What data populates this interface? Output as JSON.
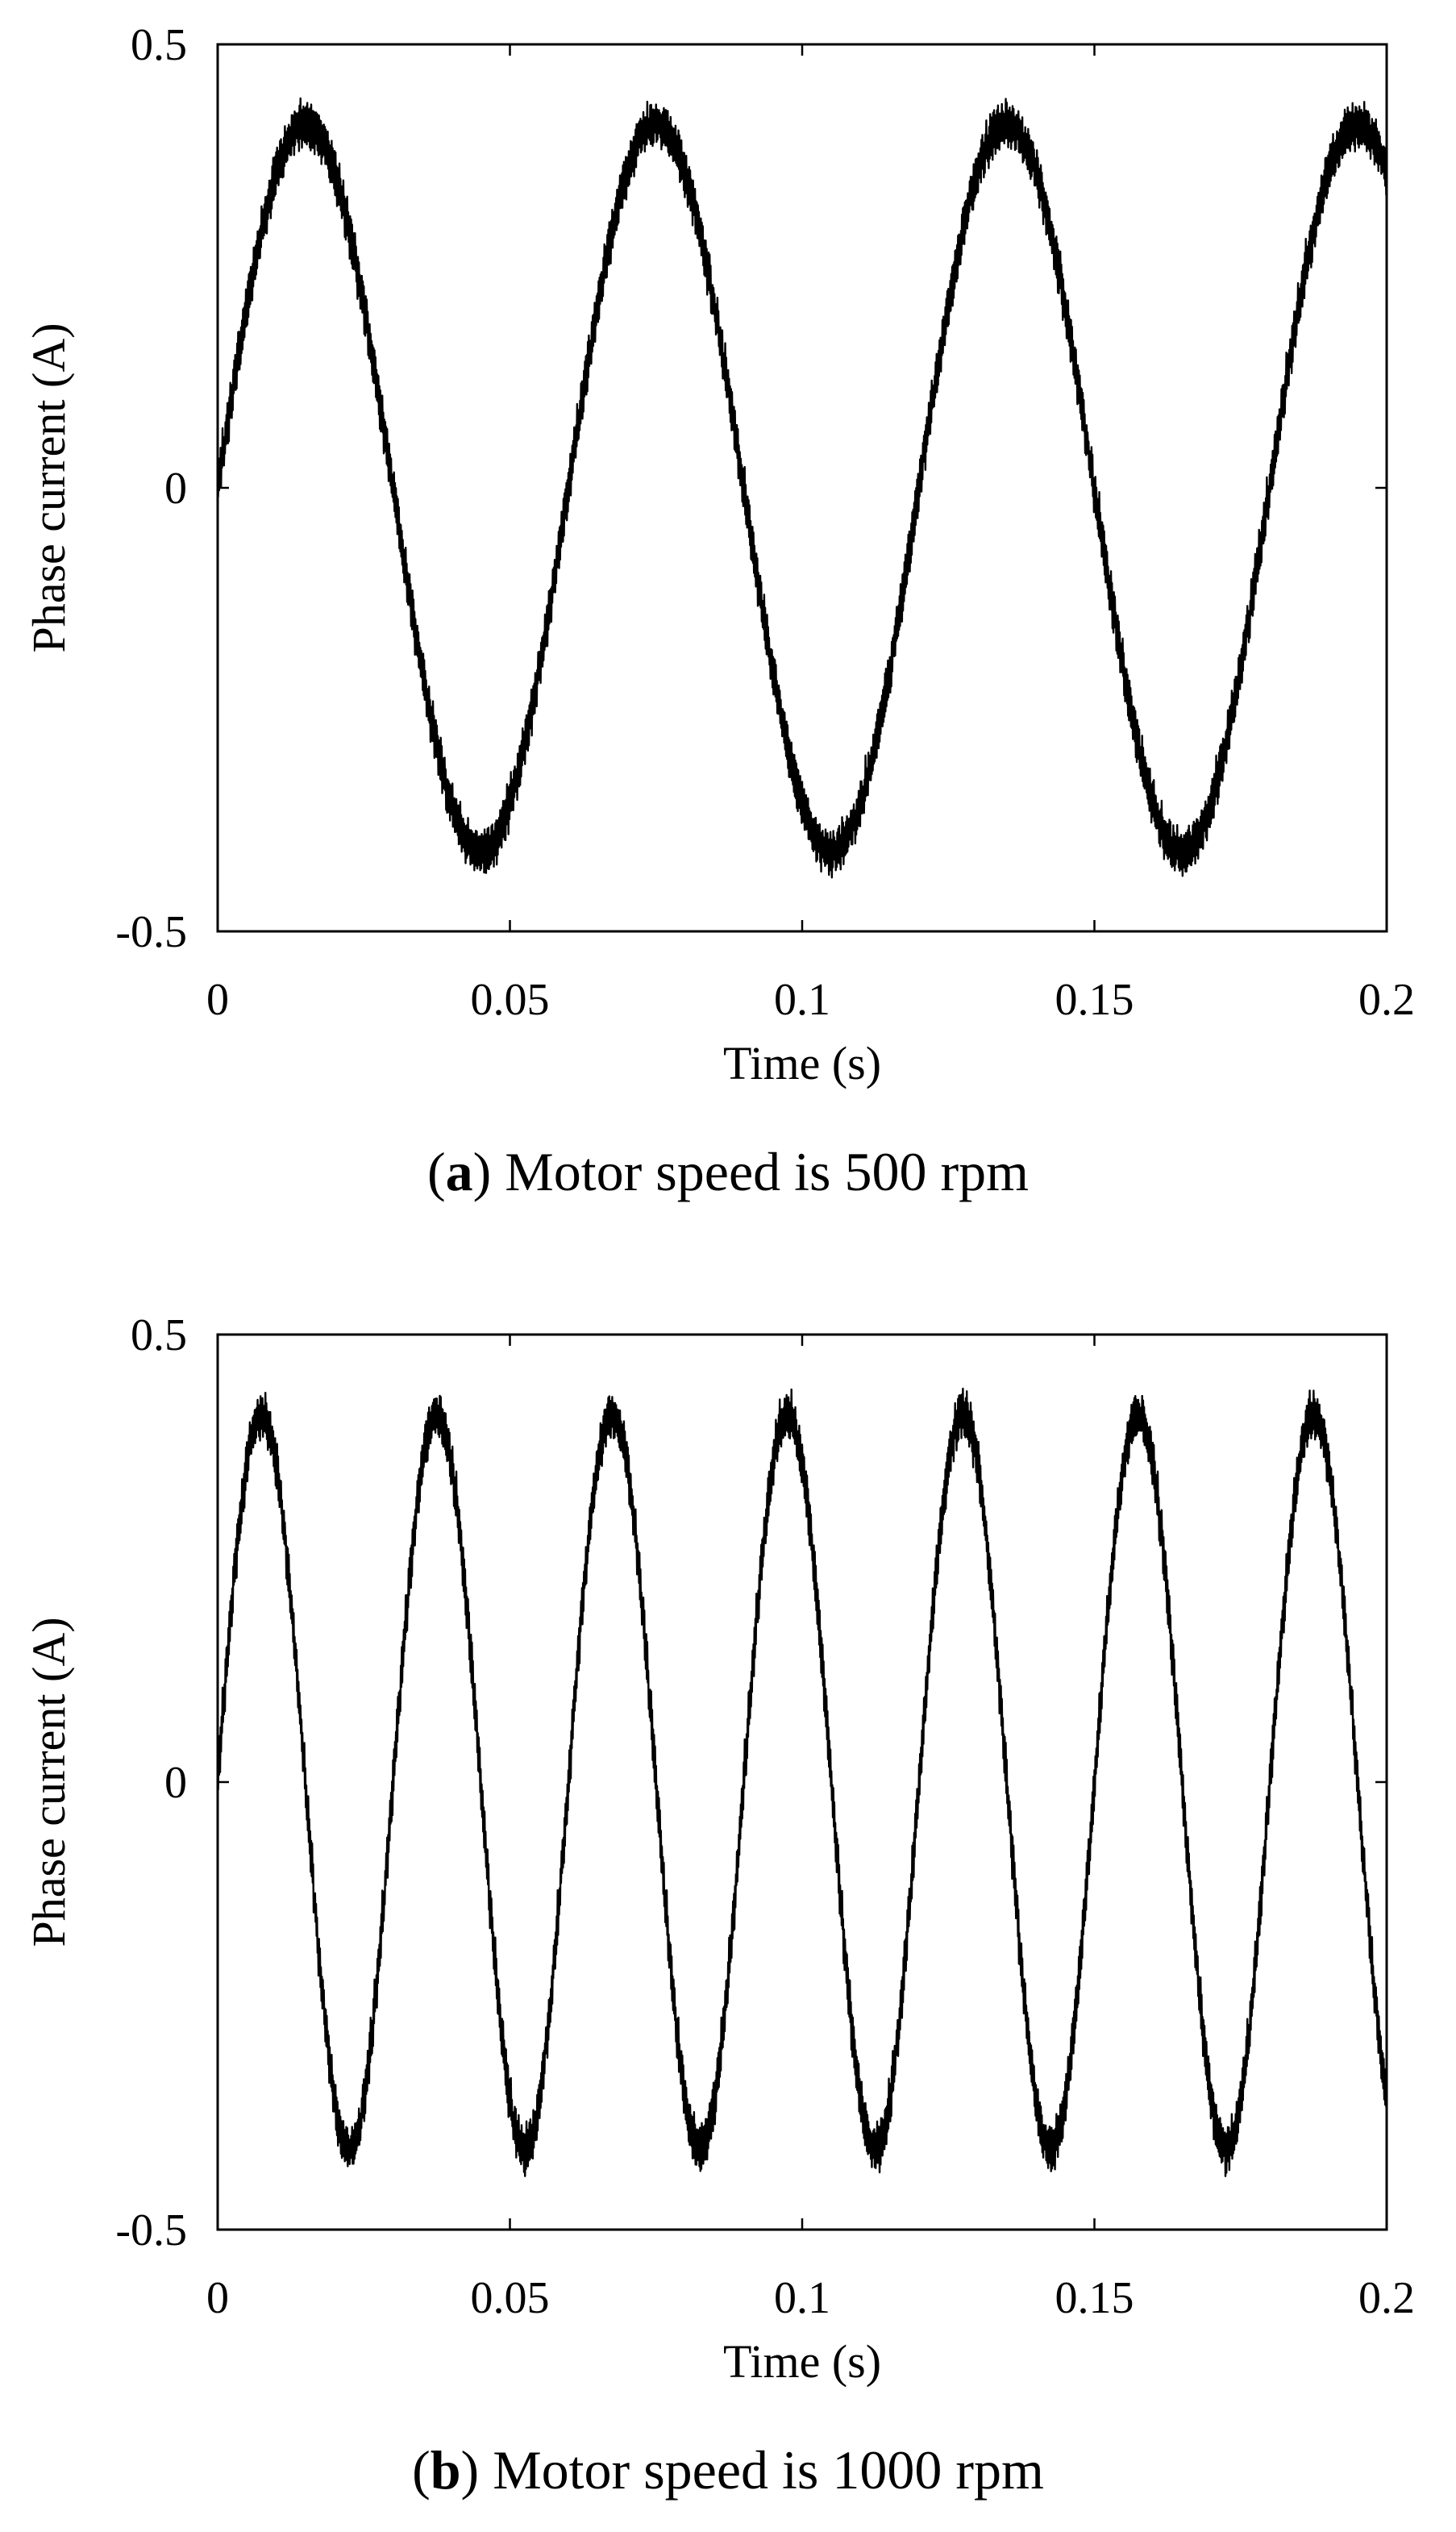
{
  "chart_data": [
    {
      "type": "line",
      "panel": "a",
      "caption_letter": "a",
      "caption_prefix": "(",
      "caption_suffix": ")",
      "caption_text": " Motor speed is 500 rpm",
      "motor_speed_rpm": 500,
      "xlabel": "Time (s)",
      "ylabel": "Phase current (A)",
      "xlim": [
        0,
        0.2
      ],
      "ylim": [
        -0.5,
        0.5
      ],
      "xticks": [
        0,
        0.05,
        0.1,
        0.15,
        0.2
      ],
      "xtick_labels": [
        "0",
        "0.05",
        "0.1",
        "0.15",
        "0.2"
      ],
      "yticks": [
        -0.5,
        0,
        0.5
      ],
      "ytick_labels": [
        "-0.5",
        "0",
        "0.5"
      ],
      "grid": false,
      "series": [
        {
          "name": "Phase current",
          "color": "#000000",
          "waveform": "sinusoid with ripple",
          "amplitude": 0.41,
          "frequency_hz": 16.67,
          "phase_start": 0,
          "ripple_amplitude": 0.025,
          "x_start": 0,
          "x_end": 0.2
        }
      ]
    },
    {
      "type": "line",
      "panel": "b",
      "caption_letter": "b",
      "caption_prefix": "(",
      "caption_suffix": ")",
      "caption_text": " Motor speed is 1000 rpm",
      "motor_speed_rpm": 1000,
      "xlabel": "Time (s)",
      "ylabel": "Phase current (A)",
      "xlim": [
        0,
        0.2
      ],
      "ylim": [
        -0.5,
        0.5
      ],
      "xticks": [
        0,
        0.05,
        0.1,
        0.15,
        0.2
      ],
      "xtick_labels": [
        "0",
        "0.05",
        "0.1",
        "0.15",
        "0.2"
      ],
      "yticks": [
        -0.5,
        0,
        0.5
      ],
      "ytick_labels": [
        "-0.5",
        "0",
        "0.5"
      ],
      "grid": false,
      "series": [
        {
          "name": "Phase current",
          "color": "#000000",
          "waveform": "sinusoid with ripple",
          "amplitude": 0.41,
          "frequency_hz": 33.33,
          "phase_start": 0,
          "ripple_amplitude": 0.025,
          "x_start": 0,
          "x_end": 0.2
        }
      ]
    }
  ]
}
